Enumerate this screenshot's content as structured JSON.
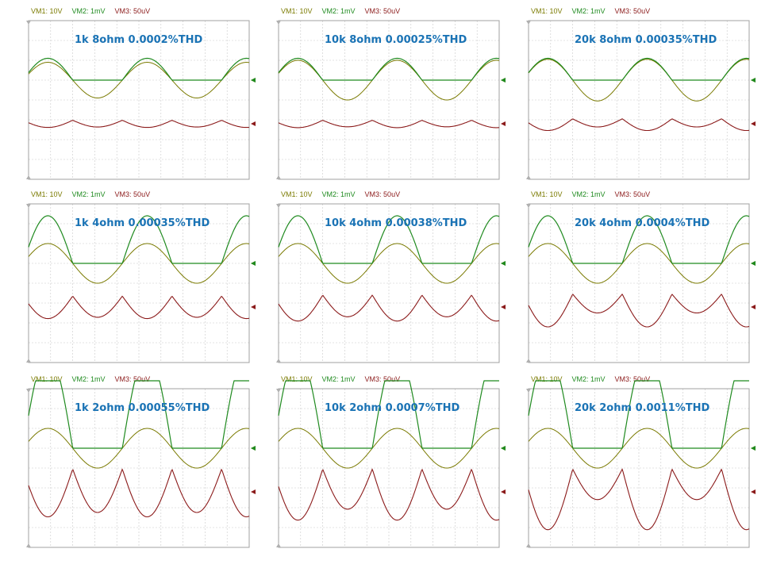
{
  "colors": {
    "vm1": "#7a7a00",
    "vm2": "#1f8a1f",
    "vm3": "#8b1a1a",
    "caption": "#1a73b5",
    "grid": "#c8c8c8",
    "border": "#a0a0a0"
  },
  "scale_labels": {
    "vm1": "VM1: 10V",
    "vm2": "VM2: 1mV",
    "vm3": "VM3: 50uV"
  },
  "chart_data": [
    {
      "type": "line",
      "caption": "1k 8ohm 0.0002%THD",
      "frequency": "1k",
      "load": "8ohm",
      "thd_percent": 0.0002,
      "series": [
        {
          "name": "VM1",
          "amplitude_div": 0.9
        },
        {
          "name": "VM2",
          "amplitude_div": 1.1
        },
        {
          "name": "VM3",
          "amplitude_div": 0.35,
          "distortion": 0.05
        }
      ]
    },
    {
      "type": "line",
      "caption": "10k 8ohm 0.00025%THD",
      "frequency": "10k",
      "load": "8ohm",
      "thd_percent": 0.00025,
      "series": [
        {
          "name": "VM1",
          "amplitude_div": 1.0
        },
        {
          "name": "VM2",
          "amplitude_div": 1.1
        },
        {
          "name": "VM3",
          "amplitude_div": 0.35,
          "distortion": 0.1
        }
      ]
    },
    {
      "type": "line",
      "caption": "20k 8ohm 0.00035%THD",
      "frequency": "20k",
      "load": "8ohm",
      "thd_percent": 0.00035,
      "series": [
        {
          "name": "VM1",
          "amplitude_div": 1.05
        },
        {
          "name": "VM2",
          "amplitude_div": 1.1
        },
        {
          "name": "VM3",
          "amplitude_div": 0.5,
          "distortion": 0.3
        }
      ]
    },
    {
      "type": "line",
      "caption": "1k 4ohm 0.00035%THD",
      "frequency": "1k",
      "load": "4ohm",
      "thd_percent": 0.00035,
      "series": [
        {
          "name": "VM1",
          "amplitude_div": 1.0
        },
        {
          "name": "VM2",
          "amplitude_div": 2.4
        },
        {
          "name": "VM3",
          "amplitude_div": 1.1,
          "distortion": 0.05
        }
      ]
    },
    {
      "type": "line",
      "caption": "10k 4ohm 0.00038%THD",
      "frequency": "10k",
      "load": "4ohm",
      "thd_percent": 0.00038,
      "series": [
        {
          "name": "VM1",
          "amplitude_div": 1.0
        },
        {
          "name": "VM2",
          "amplitude_div": 2.4
        },
        {
          "name": "VM3",
          "amplitude_div": 1.2,
          "distortion": 0.15
        }
      ]
    },
    {
      "type": "line",
      "caption": "20k 4ohm 0.0004%THD",
      "frequency": "20k",
      "load": "4ohm",
      "thd_percent": 0.0004,
      "series": [
        {
          "name": "VM1",
          "amplitude_div": 1.0
        },
        {
          "name": "VM2",
          "amplitude_div": 2.4
        },
        {
          "name": "VM3",
          "amplitude_div": 1.3,
          "distortion": 0.45
        }
      ]
    },
    {
      "type": "line",
      "caption": "1k 2ohm 0.00055%THD",
      "frequency": "1k",
      "load": "2ohm",
      "thd_percent": 0.00055,
      "series": [
        {
          "name": "VM1",
          "amplitude_div": 1.0
        },
        {
          "name": "VM2",
          "amplitude_div": 4.8
        },
        {
          "name": "VM3",
          "amplitude_div": 2.3,
          "distortion": 0.08
        }
      ]
    },
    {
      "type": "line",
      "caption": "10k 2ohm 0.0007%THD",
      "frequency": "10k",
      "load": "2ohm",
      "thd_percent": 0.0007,
      "series": [
        {
          "name": "VM1",
          "amplitude_div": 1.0
        },
        {
          "name": "VM2",
          "amplitude_div": 4.8
        },
        {
          "name": "VM3",
          "amplitude_div": 2.3,
          "distortion": 0.2
        }
      ]
    },
    {
      "type": "line",
      "caption": "20k 2ohm 0.0011%THD",
      "frequency": "20k",
      "load": "2ohm",
      "thd_percent": 0.0011,
      "series": [
        {
          "name": "VM1",
          "amplitude_div": 1.0
        },
        {
          "name": "VM2",
          "amplitude_div": 4.8
        },
        {
          "name": "VM3",
          "amplitude_div": 2.3,
          "distortion": 0.55
        }
      ]
    }
  ]
}
